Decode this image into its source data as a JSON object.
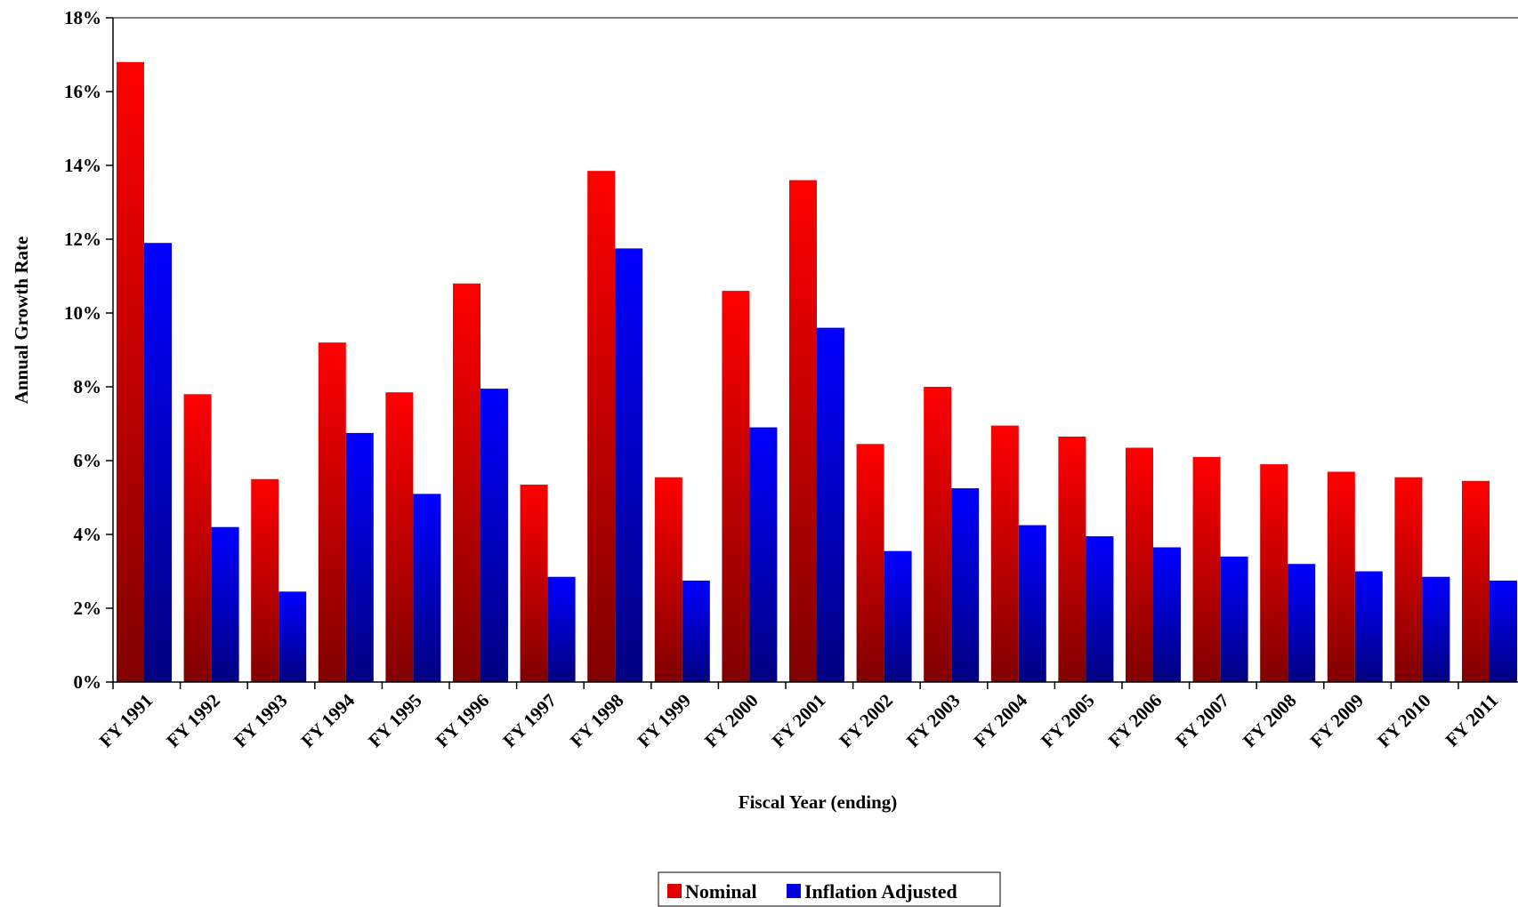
{
  "chart_data": {
    "type": "bar",
    "title": "",
    "xlabel": "Fiscal Year (ending)",
    "ylabel": "Annual Growth Rate",
    "ylim": [
      0,
      18
    ],
    "y_ticks": [
      0,
      2,
      4,
      6,
      8,
      10,
      12,
      14,
      16,
      18
    ],
    "y_tick_suffix": "%",
    "grid": false,
    "legend_position": "bottom-center",
    "categories": [
      "FY 1991",
      "FY 1992",
      "FY 1993",
      "FY 1994",
      "FY 1995",
      "FY 1996",
      "FY 1997",
      "FY 1998",
      "FY 1999",
      "FY 2000",
      "FY 2001",
      "FY 2002",
      "FY 2003",
      "FY 2004",
      "FY 2005",
      "FY 2006",
      "FY 2007",
      "FY 2008",
      "FY 2009",
      "FY 2010",
      "FY 2011"
    ],
    "series": [
      {
        "name": "Nominal",
        "color_top": "#ff0000",
        "color_bottom": "#800000",
        "values": [
          16.8,
          7.8,
          5.5,
          9.2,
          7.85,
          10.8,
          5.35,
          13.85,
          5.55,
          10.6,
          13.6,
          6.45,
          8.0,
          6.95,
          6.65,
          6.35,
          6.1,
          5.9,
          5.7,
          5.55,
          5.45
        ]
      },
      {
        "name": "Inflation Adjusted",
        "color_top": "#0000ff",
        "color_bottom": "#000080",
        "values": [
          11.9,
          4.2,
          2.45,
          6.75,
          5.1,
          7.95,
          2.85,
          11.75,
          2.75,
          6.9,
          9.6,
          3.55,
          5.25,
          4.25,
          3.95,
          3.65,
          3.4,
          3.2,
          3.0,
          2.85,
          2.75
        ]
      }
    ]
  }
}
